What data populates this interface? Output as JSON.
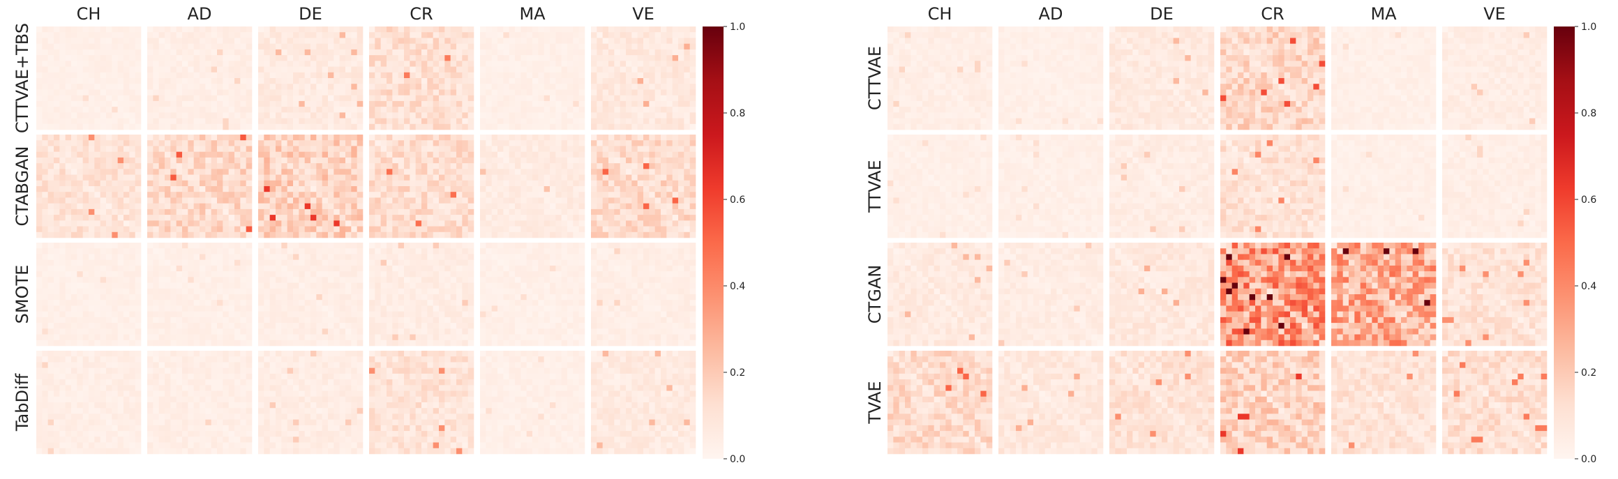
{
  "chart_data": [
    {
      "type": "heatmap",
      "panel": "left",
      "columns": [
        "CH",
        "AD",
        "DE",
        "CR",
        "MA",
        "VE"
      ],
      "rows": [
        "CTTVAE+TBS",
        "CTABGAN",
        "SMOTE",
        "TabDiff"
      ],
      "colormap": "Reds",
      "vmin": 0.0,
      "vmax": 1.0,
      "colorbar_ticks": [
        "0.0",
        "0.2",
        "0.4",
        "0.6",
        "0.8",
        "1.0"
      ],
      "cell_intensity": [
        [
          0.04,
          0.05,
          0.08,
          0.14,
          0.04,
          0.09
        ],
        [
          0.12,
          0.17,
          0.2,
          0.15,
          0.07,
          0.16
        ],
        [
          0.04,
          0.04,
          0.05,
          0.06,
          0.04,
          0.05
        ],
        [
          0.05,
          0.05,
          0.06,
          0.12,
          0.04,
          0.08
        ]
      ]
    },
    {
      "type": "heatmap",
      "panel": "right",
      "columns": [
        "CH",
        "AD",
        "DE",
        "CR",
        "MA",
        "VE"
      ],
      "rows": [
        "CTTVAE",
        "TTVAE",
        "CTGAN",
        "TVAE"
      ],
      "colormap": "Reds",
      "vmin": 0.0,
      "vmax": 1.0,
      "colorbar_ticks": [
        "0.0",
        "0.2",
        "0.4",
        "0.6",
        "0.8",
        "1.0"
      ],
      "cell_intensity": [
        [
          0.05,
          0.04,
          0.08,
          0.18,
          0.04,
          0.06
        ],
        [
          0.04,
          0.04,
          0.06,
          0.13,
          0.04,
          0.05
        ],
        [
          0.08,
          0.06,
          0.09,
          0.42,
          0.35,
          0.12
        ],
        [
          0.16,
          0.09,
          0.12,
          0.2,
          0.12,
          0.14
        ]
      ]
    }
  ]
}
